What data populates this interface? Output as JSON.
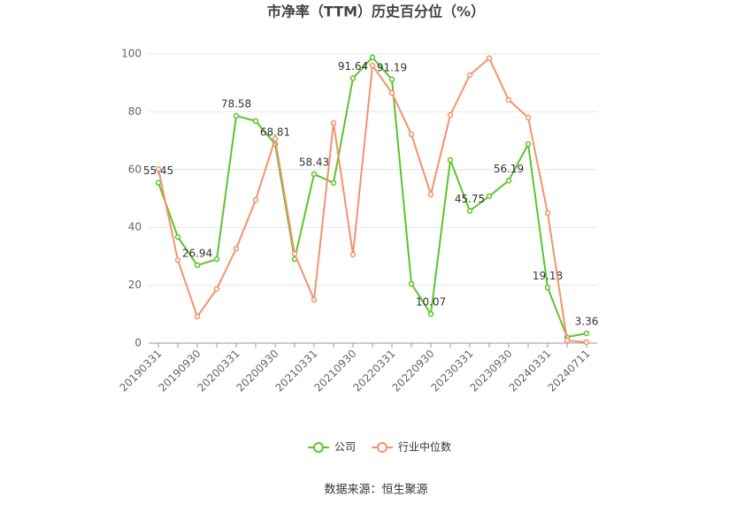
{
  "chart_data": {
    "type": "line",
    "title": "市净率（TTM）历史百分位（%）",
    "source": "数据来源：恒生聚源",
    "categories": [
      "20190331",
      null,
      "20190930",
      null,
      "20200331",
      null,
      "20200930",
      null,
      "20210331",
      null,
      "20210930",
      null,
      "20220331",
      null,
      "20220930",
      null,
      "20230331",
      null,
      "20230930",
      null,
      "20240331",
      null,
      "20240711"
    ],
    "series": [
      {
        "name": "公司",
        "color": "#5cc42c",
        "values": [
          55.45,
          36.7,
          26.94,
          29,
          78.58,
          76.8,
          68.81,
          29,
          58.43,
          55.4,
          91.64,
          98.8,
          91.19,
          20.5,
          10.07,
          63.3,
          45.75,
          50.8,
          56.19,
          68.8,
          19.18,
          2.1,
          3.36
        ],
        "value_labels": [
          "55.45",
          null,
          "26.94",
          null,
          "78.58",
          null,
          "68.81",
          null,
          "58.43",
          null,
          "91.64",
          null,
          "91.19",
          null,
          "10.07",
          null,
          "45.75",
          null,
          "56.19",
          null,
          "19.18",
          null,
          "3.36"
        ]
      },
      {
        "name": "行业中位数",
        "color": "#f4926c",
        "values": [
          60.2,
          28.7,
          9.2,
          18.7,
          32.7,
          49.5,
          70.6,
          30.9,
          15,
          76.1,
          30.6,
          96,
          86.5,
          72.2,
          51.4,
          78.9,
          92.7,
          98.5,
          84.1,
          78,
          45,
          0.9,
          0.3
        ]
      }
    ],
    "ylim": [
      0,
      100
    ],
    "yticks": [
      0,
      20,
      40,
      60,
      80,
      100
    ],
    "grid": true
  }
}
